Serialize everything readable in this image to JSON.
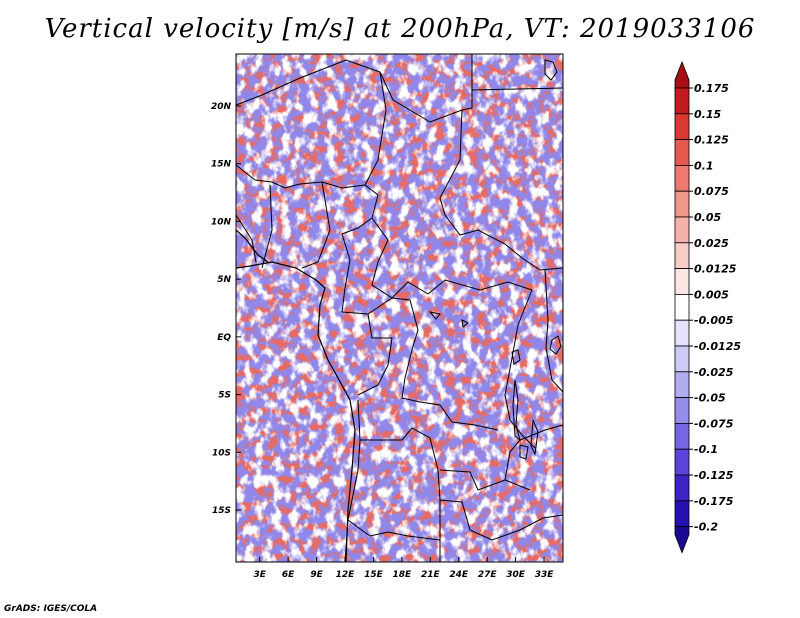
{
  "chart_data": {
    "type": "heatmap",
    "title": "Vertical velocity [m/s] at 200hPa, VT: 2019033106",
    "x_ticks": [
      "3E",
      "6E",
      "9E",
      "12E",
      "15E",
      "18E",
      "21E",
      "24E",
      "27E",
      "30E",
      "33E"
    ],
    "y_ticks": [
      "20N",
      "15N",
      "10N",
      "5N",
      "EQ",
      "5S",
      "10S",
      "15S"
    ],
    "xlim": [
      0.5,
      35
    ],
    "ylim": [
      -19.5,
      24.5
    ],
    "colorbar": {
      "labels": [
        "0.175",
        "0.15",
        "0.125",
        "0.1",
        "0.075",
        "0.05",
        "0.025",
        "0.0125",
        "0.005",
        "-0.005",
        "-0.0125",
        "-0.025",
        "-0.05",
        "-0.075",
        "-0.1",
        "-0.125",
        "-0.175",
        "-0.2"
      ],
      "colors": [
        "#a50f15",
        "#c21a1f",
        "#d83a33",
        "#e45a4f",
        "#ec7a6e",
        "#f2978d",
        "#f6b2aa",
        "#f9cdc7",
        "#fce6e3",
        "#ffffff",
        "#e6e4fb",
        "#cfcbf7",
        "#b2acf1",
        "#958ceb",
        "#7666e3",
        "#5a45d8",
        "#3d23c8",
        "#2510b0",
        "#1a0a90"
      ]
    }
  },
  "credit": "GrADS: IGES/COLA"
}
